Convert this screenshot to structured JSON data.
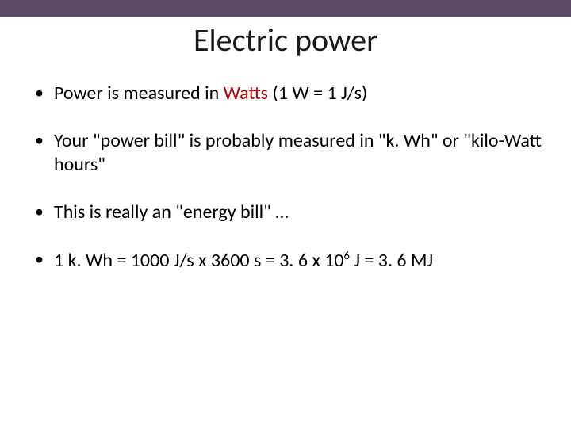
{
  "colors": {
    "top_bar": "#5b4a68",
    "title_text": "#1a1a1a",
    "body_text": "#000000",
    "emphasis_text": "#c00000",
    "background": "#ffffff"
  },
  "title": "Electric power",
  "bullets": [
    {
      "segments": [
        {
          "text": "Power is measured in "
        },
        {
          "text": "Watts",
          "emphasis": true
        },
        {
          "text": " (1 W = 1 J/s)"
        }
      ]
    },
    {
      "segments": [
        {
          "text": "Your \"power bill\" is probably measured in \"k. Wh\" or \"kilo-Watt hours\""
        }
      ]
    },
    {
      "segments": [
        {
          "text": "This is really an \"energy bill\" …"
        }
      ]
    },
    {
      "segments": [
        {
          "text": "1 k. Wh = 1000 J/s x 3600 s = 3. 6 x 10"
        },
        {
          "text": "6",
          "super": true
        },
        {
          "text": " J = 3. 6 MJ"
        }
      ]
    }
  ]
}
